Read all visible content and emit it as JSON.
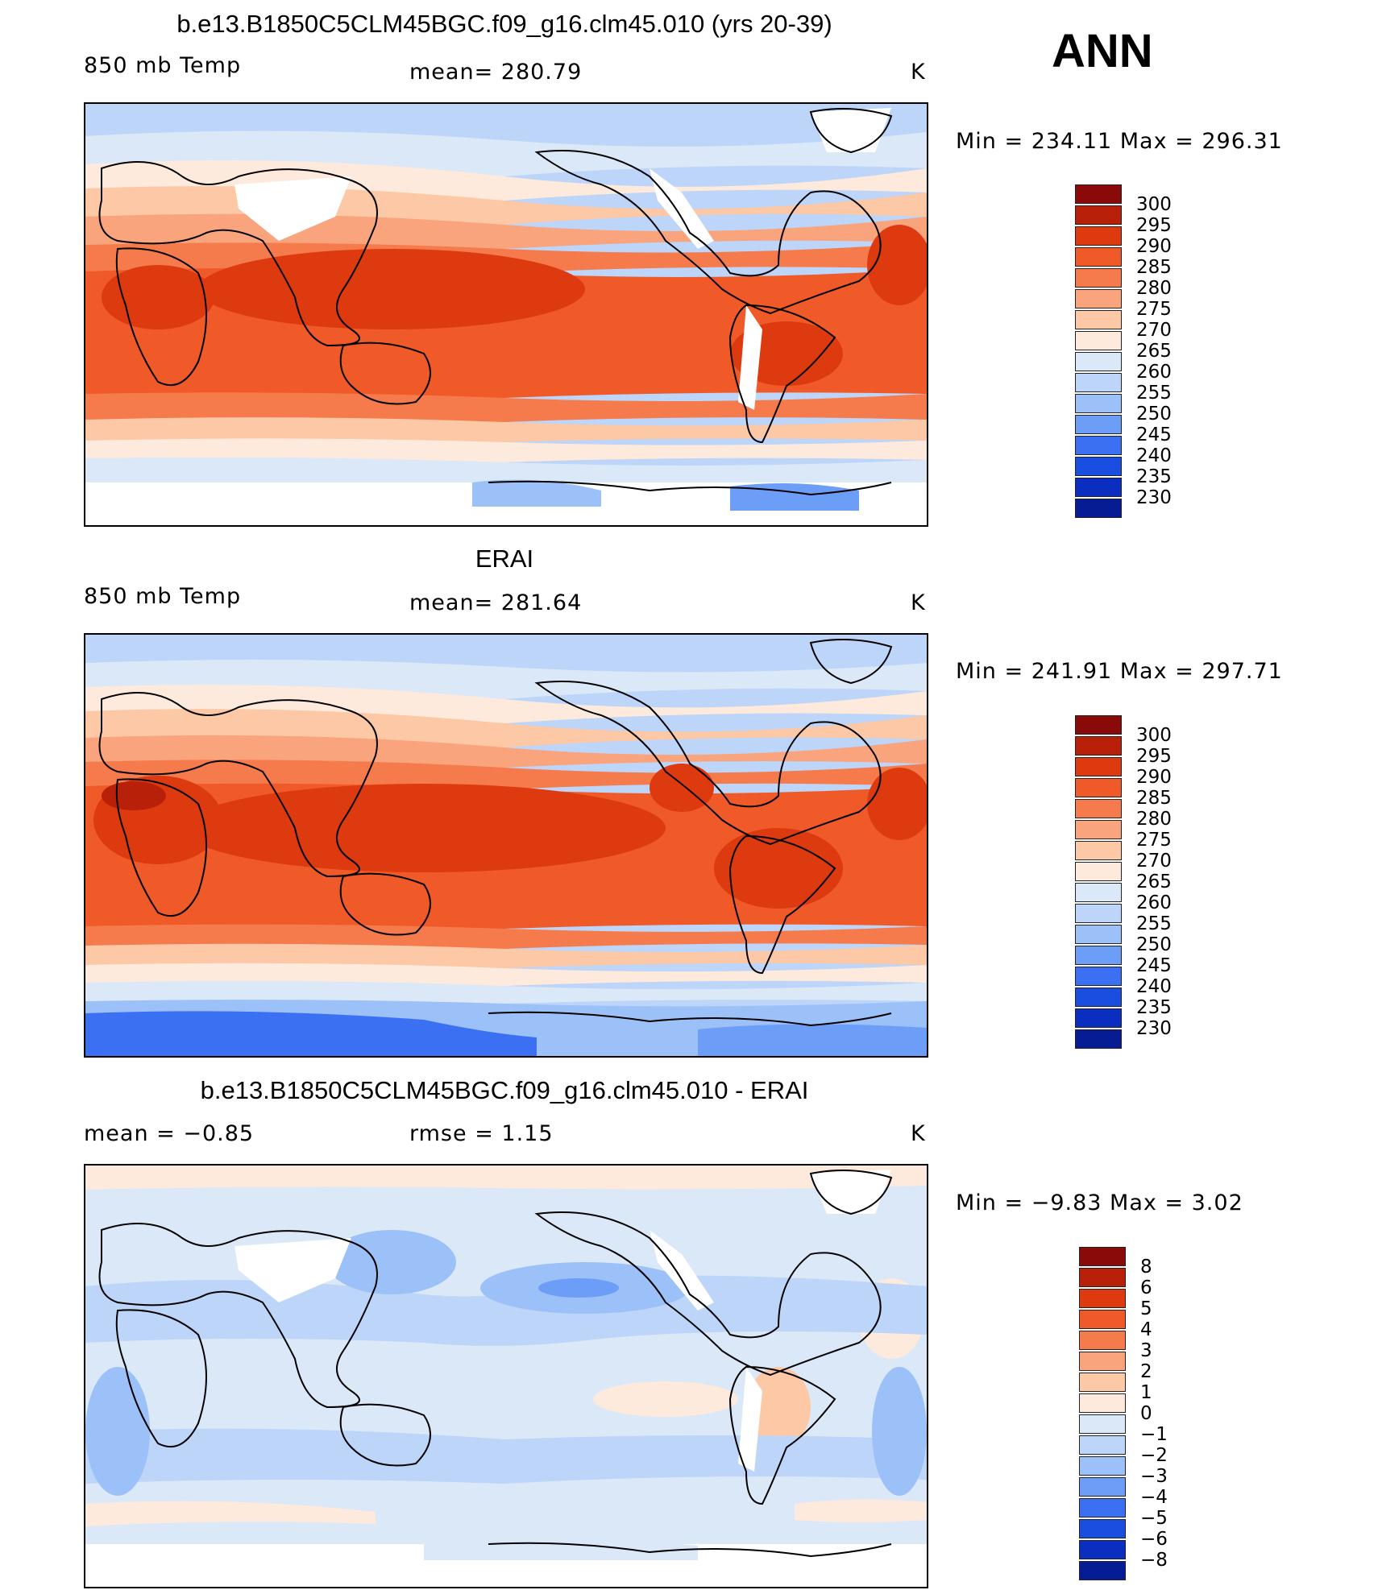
{
  "season": "ANN",
  "units": "K",
  "panels": [
    {
      "title": "b.e13.B1850C5CLM45BGC.f09_g16.clm45.010 (yrs 20-39)",
      "variable": "850 mb Temp",
      "stat_left": "",
      "stat_mid": "mean= 280.79",
      "units": "K",
      "minmax": "Min = 234.11 Max = 296.31",
      "colorbar": {
        "colors": [
          "#8a0a0a",
          "#b8200a",
          "#dd3a10",
          "#f05a28",
          "#f67b4c",
          "#f9a47c",
          "#fcc8a5",
          "#feeadc",
          "#dbe8f8",
          "#bcd5f8",
          "#9cc0f8",
          "#6c9ef8",
          "#3c70f2",
          "#1a4ee0",
          "#0a2fc0",
          "#061c94"
        ],
        "labels": [
          "300",
          "295",
          "290",
          "285",
          "280",
          "275",
          "270",
          "265",
          "260",
          "255",
          "250",
          "245",
          "240",
          "235",
          "230"
        ]
      }
    },
    {
      "title": "ERAI",
      "variable": "850 mb Temp",
      "stat_left": "",
      "stat_mid": "mean= 281.64",
      "units": "K",
      "minmax": "Min = 241.91 Max = 297.71",
      "colorbar": {
        "colors": [
          "#8a0a0a",
          "#b8200a",
          "#dd3a10",
          "#f05a28",
          "#f67b4c",
          "#f9a47c",
          "#fcc8a5",
          "#feeadc",
          "#dbe8f8",
          "#bcd5f8",
          "#9cc0f8",
          "#6c9ef8",
          "#3c70f2",
          "#1a4ee0",
          "#0a2fc0",
          "#061c94"
        ],
        "labels": [
          "300",
          "295",
          "290",
          "285",
          "280",
          "275",
          "270",
          "265",
          "260",
          "255",
          "250",
          "245",
          "240",
          "235",
          "230"
        ]
      }
    },
    {
      "title": "b.e13.B1850C5CLM45BGC.f09_g16.clm45.010 - ERAI",
      "variable": "",
      "stat_left": "mean = −0.85",
      "stat_mid": "rmse = 1.15",
      "units": "K",
      "minmax": "Min = −9.83 Max = 3.02",
      "colorbar": {
        "colors": [
          "#8a0a0a",
          "#b8200a",
          "#dd3a10",
          "#f05a28",
          "#f67b4c",
          "#f9a47c",
          "#fcc8a5",
          "#feeadc",
          "#dbe8f8",
          "#bcd5f8",
          "#9cc0f8",
          "#6c9ef8",
          "#3c70f2",
          "#1a4ee0",
          "#0a2fc0",
          "#061c94"
        ],
        "labels": [
          "8",
          "6",
          "5",
          "4",
          "3",
          "2",
          "1",
          "0",
          "−1",
          "−2",
          "−3",
          "−4",
          "−5",
          "−6",
          "−8"
        ]
      }
    }
  ]
}
